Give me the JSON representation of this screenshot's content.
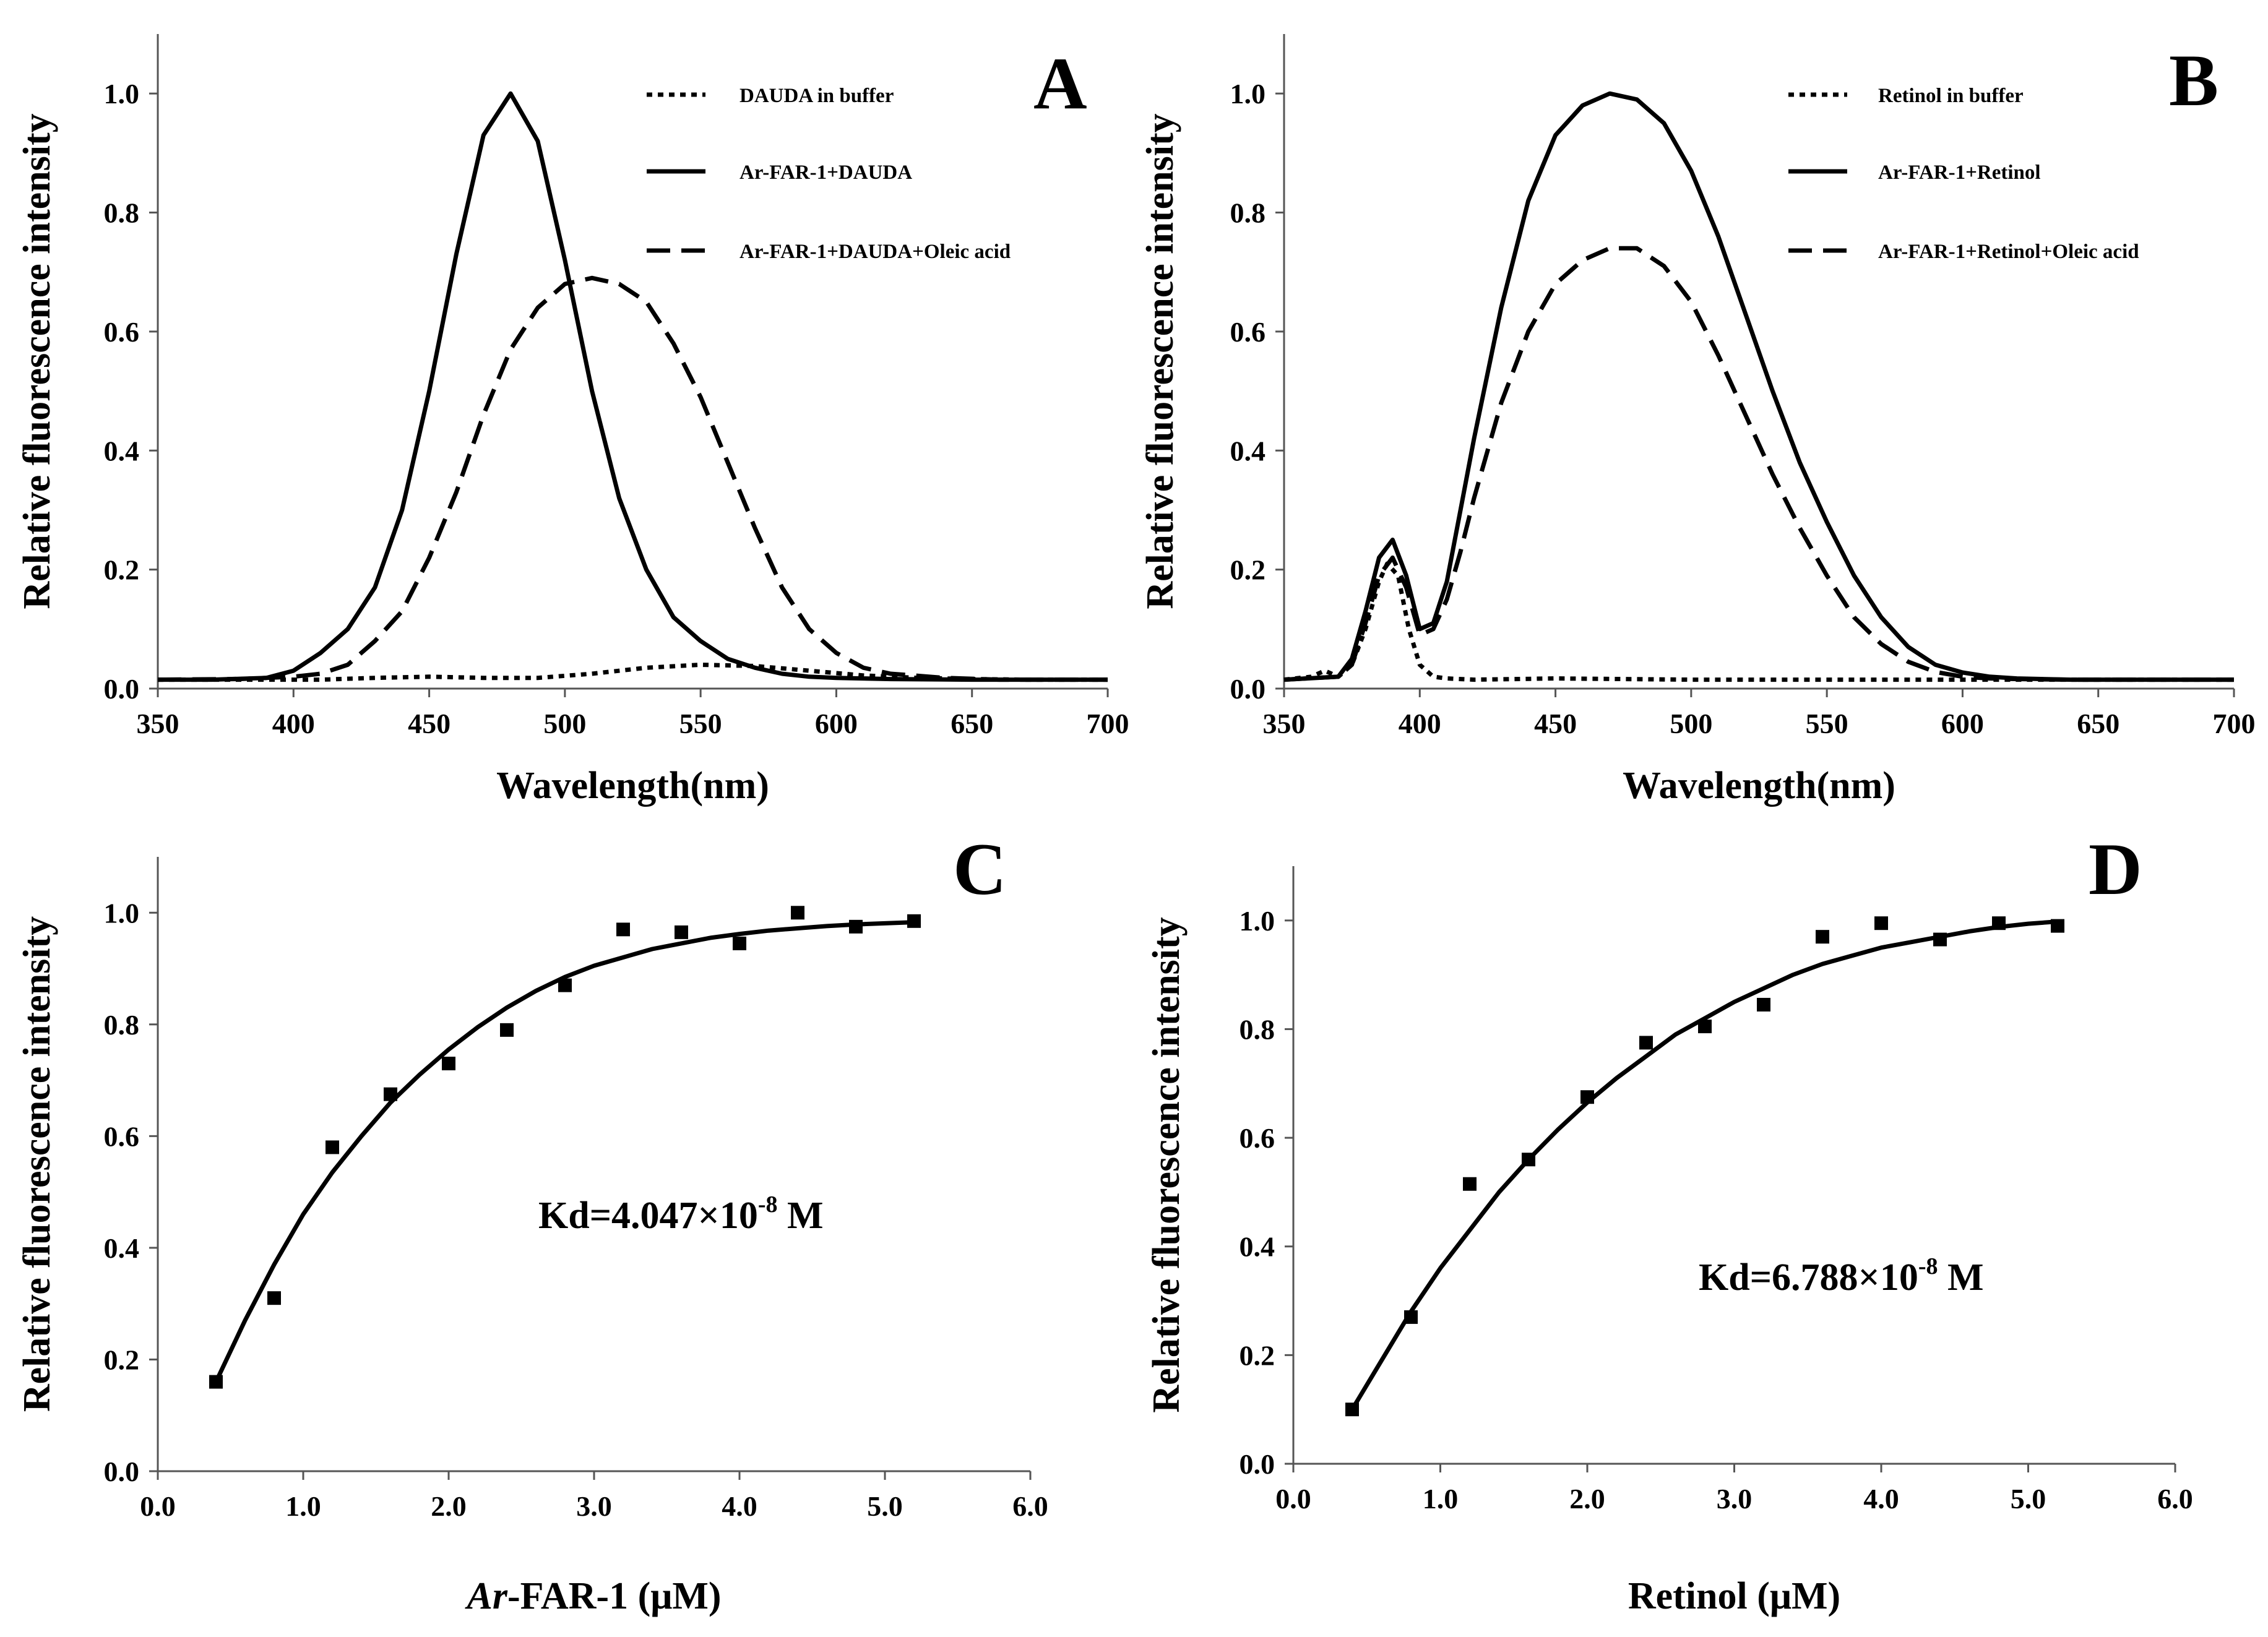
{
  "chart_data": [
    {
      "panel": "A",
      "type": "line",
      "xlabel": "Wavelength(nm)",
      "ylabel": "Relative fluorescence intensity",
      "xlim": [
        350,
        700
      ],
      "ylim": [
        0,
        1.1
      ],
      "xticks": [
        "350",
        "400",
        "450",
        "500",
        "550",
        "600",
        "650",
        "700"
      ],
      "yticks": [
        "0.0",
        "0.2",
        "0.4",
        "0.6",
        "0.8",
        "1.0"
      ],
      "legend_position": "top-right",
      "series": [
        {
          "name": "DAUDA in buffer",
          "style": "dotted",
          "x": [
            350,
            370,
            390,
            410,
            430,
            450,
            470,
            490,
            510,
            530,
            550,
            570,
            590,
            610,
            630,
            650,
            670,
            690,
            700
          ],
          "y": [
            0.015,
            0.015,
            0.015,
            0.015,
            0.018,
            0.02,
            0.018,
            0.018,
            0.025,
            0.035,
            0.04,
            0.038,
            0.03,
            0.022,
            0.018,
            0.016,
            0.015,
            0.015,
            0.015
          ]
        },
        {
          "name": "Ar-FAR-1+DAUDA",
          "style": "solid",
          "x": [
            350,
            370,
            390,
            400,
            410,
            420,
            430,
            440,
            450,
            460,
            470,
            480,
            490,
            500,
            510,
            520,
            530,
            540,
            550,
            560,
            570,
            580,
            590,
            600,
            620,
            650,
            700
          ],
          "y": [
            0.015,
            0.015,
            0.018,
            0.03,
            0.06,
            0.1,
            0.17,
            0.3,
            0.5,
            0.73,
            0.93,
            1.0,
            0.92,
            0.72,
            0.5,
            0.32,
            0.2,
            0.12,
            0.08,
            0.05,
            0.035,
            0.025,
            0.02,
            0.018,
            0.016,
            0.015,
            0.015
          ]
        },
        {
          "name": "Ar-FAR-1+DAUDA+Oleic acid",
          "style": "dashed",
          "x": [
            350,
            380,
            400,
            410,
            420,
            430,
            440,
            450,
            460,
            470,
            480,
            490,
            500,
            510,
            520,
            530,
            540,
            550,
            560,
            570,
            580,
            590,
            600,
            610,
            620,
            640,
            660,
            700
          ],
          "y": [
            0.015,
            0.016,
            0.02,
            0.025,
            0.04,
            0.08,
            0.13,
            0.22,
            0.33,
            0.46,
            0.57,
            0.64,
            0.68,
            0.69,
            0.68,
            0.65,
            0.58,
            0.49,
            0.38,
            0.27,
            0.17,
            0.1,
            0.06,
            0.035,
            0.025,
            0.018,
            0.015,
            0.015
          ]
        }
      ]
    },
    {
      "panel": "B",
      "type": "line",
      "xlabel": "Wavelength(nm)",
      "ylabel": "Relative fluorescence intensity",
      "xlim": [
        350,
        700
      ],
      "ylim": [
        0,
        1.1
      ],
      "xticks": [
        "350",
        "400",
        "450",
        "500",
        "550",
        "600",
        "650",
        "700"
      ],
      "yticks": [
        "0.0",
        "0.2",
        "0.4",
        "0.6",
        "0.8",
        "1.0"
      ],
      "legend_position": "top-right",
      "series": [
        {
          "name": "Retinol in buffer",
          "style": "dotted",
          "x": [
            350,
            360,
            365,
            370,
            375,
            380,
            385,
            388,
            392,
            396,
            400,
            405,
            410,
            420,
            450,
            500,
            550,
            600,
            650,
            700
          ],
          "y": [
            0.015,
            0.02,
            0.03,
            0.02,
            0.04,
            0.1,
            0.18,
            0.21,
            0.19,
            0.1,
            0.04,
            0.02,
            0.017,
            0.015,
            0.017,
            0.015,
            0.015,
            0.015,
            0.015,
            0.015
          ]
        },
        {
          "name": "Ar-FAR-1+Retinol",
          "style": "solid",
          "x": [
            350,
            370,
            375,
            380,
            385,
            390,
            395,
            400,
            405,
            410,
            415,
            420,
            430,
            440,
            450,
            460,
            470,
            480,
            490,
            500,
            510,
            520,
            530,
            540,
            550,
            560,
            570,
            580,
            590,
            600,
            610,
            620,
            640,
            660,
            700
          ],
          "y": [
            0.015,
            0.02,
            0.05,
            0.13,
            0.22,
            0.25,
            0.19,
            0.1,
            0.11,
            0.18,
            0.3,
            0.42,
            0.64,
            0.82,
            0.93,
            0.98,
            1.0,
            0.99,
            0.95,
            0.87,
            0.76,
            0.63,
            0.5,
            0.38,
            0.28,
            0.19,
            0.12,
            0.07,
            0.04,
            0.027,
            0.02,
            0.017,
            0.015,
            0.015,
            0.015
          ]
        },
        {
          "name": "Ar-FAR-1+Retinol+Oleic acid",
          "style": "dashed",
          "x": [
            350,
            370,
            375,
            380,
            385,
            390,
            395,
            400,
            405,
            410,
            415,
            420,
            430,
            440,
            450,
            460,
            470,
            480,
            490,
            500,
            510,
            520,
            530,
            540,
            550,
            560,
            570,
            580,
            590,
            600,
            610,
            620,
            640,
            660,
            700
          ],
          "y": [
            0.015,
            0.02,
            0.04,
            0.11,
            0.19,
            0.22,
            0.17,
            0.09,
            0.1,
            0.15,
            0.23,
            0.32,
            0.48,
            0.6,
            0.68,
            0.72,
            0.74,
            0.74,
            0.71,
            0.65,
            0.56,
            0.46,
            0.36,
            0.27,
            0.19,
            0.12,
            0.075,
            0.045,
            0.028,
            0.02,
            0.017,
            0.016,
            0.015,
            0.015,
            0.015
          ]
        }
      ]
    },
    {
      "panel": "C",
      "type": "scatter",
      "xlabel_prefix": "Ar",
      "xlabel_rest": "-FAR-1 (μM)",
      "ylabel": "Relative fluorescence intensity",
      "xlim": [
        0,
        6
      ],
      "ylim": [
        0,
        1.1
      ],
      "xticks": [
        "0.0",
        "1.0",
        "2.0",
        "3.0",
        "4.0",
        "5.0",
        "6.0"
      ],
      "yticks": [
        "0.0",
        "0.2",
        "0.4",
        "0.6",
        "0.8",
        "1.0"
      ],
      "annotation": {
        "prefix": "Kd=4.047×10",
        "exponent": "-8",
        "suffix": " M"
      },
      "points": {
        "x": [
          0.4,
          0.8,
          1.2,
          1.6,
          2.0,
          2.4,
          2.8,
          3.2,
          3.6,
          4.0,
          4.4,
          4.8,
          5.2
        ],
        "y": [
          0.16,
          0.31,
          0.58,
          0.675,
          0.73,
          0.79,
          0.87,
          0.97,
          0.965,
          0.945,
          1.0,
          0.975,
          0.985
        ]
      },
      "fit": {
        "x": [
          0.4,
          0.6,
          0.8,
          1.0,
          1.2,
          1.4,
          1.6,
          1.8,
          2.0,
          2.2,
          2.4,
          2.6,
          2.8,
          3.0,
          3.2,
          3.4,
          3.6,
          3.8,
          4.0,
          4.2,
          4.4,
          4.6,
          4.8,
          5.0,
          5.2
        ],
        "y": [
          0.16,
          0.27,
          0.37,
          0.46,
          0.535,
          0.6,
          0.66,
          0.71,
          0.755,
          0.795,
          0.83,
          0.86,
          0.885,
          0.905,
          0.92,
          0.935,
          0.945,
          0.955,
          0.962,
          0.968,
          0.972,
          0.976,
          0.979,
          0.981,
          0.983
        ]
      }
    },
    {
      "panel": "D",
      "type": "scatter",
      "xlabel": "Retinol (μM)",
      "ylabel": "Relative fluorescence intensity",
      "xlim": [
        0,
        6
      ],
      "ylim": [
        0,
        1.1
      ],
      "xticks": [
        "0.0",
        "1.0",
        "2.0",
        "3.0",
        "4.0",
        "5.0",
        "6.0"
      ],
      "yticks": [
        "0.0",
        "0.2",
        "0.4",
        "0.6",
        "0.8",
        "1.0"
      ],
      "annotation": {
        "prefix": "Kd=6.788×10",
        "exponent": "-8",
        "suffix": " M"
      },
      "points": {
        "x": [
          0.4,
          0.8,
          1.2,
          1.6,
          2.0,
          2.4,
          2.8,
          3.2,
          3.6,
          4.0,
          4.4,
          4.8,
          5.2
        ],
        "y": [
          0.1,
          0.27,
          0.515,
          0.56,
          0.675,
          0.775,
          0.805,
          0.845,
          0.97,
          0.995,
          0.965,
          0.995,
          0.99
        ]
      },
      "fit": {
        "x": [
          0.4,
          0.6,
          0.8,
          1.0,
          1.2,
          1.4,
          1.6,
          1.8,
          2.0,
          2.2,
          2.4,
          2.6,
          2.8,
          3.0,
          3.2,
          3.4,
          3.6,
          3.8,
          4.0,
          4.2,
          4.4,
          4.6,
          4.8,
          5.0,
          5.2
        ],
        "y": [
          0.1,
          0.19,
          0.28,
          0.36,
          0.43,
          0.5,
          0.56,
          0.615,
          0.665,
          0.71,
          0.75,
          0.79,
          0.82,
          0.85,
          0.875,
          0.9,
          0.92,
          0.935,
          0.95,
          0.96,
          0.97,
          0.98,
          0.988,
          0.994,
          0.998
        ]
      }
    }
  ]
}
